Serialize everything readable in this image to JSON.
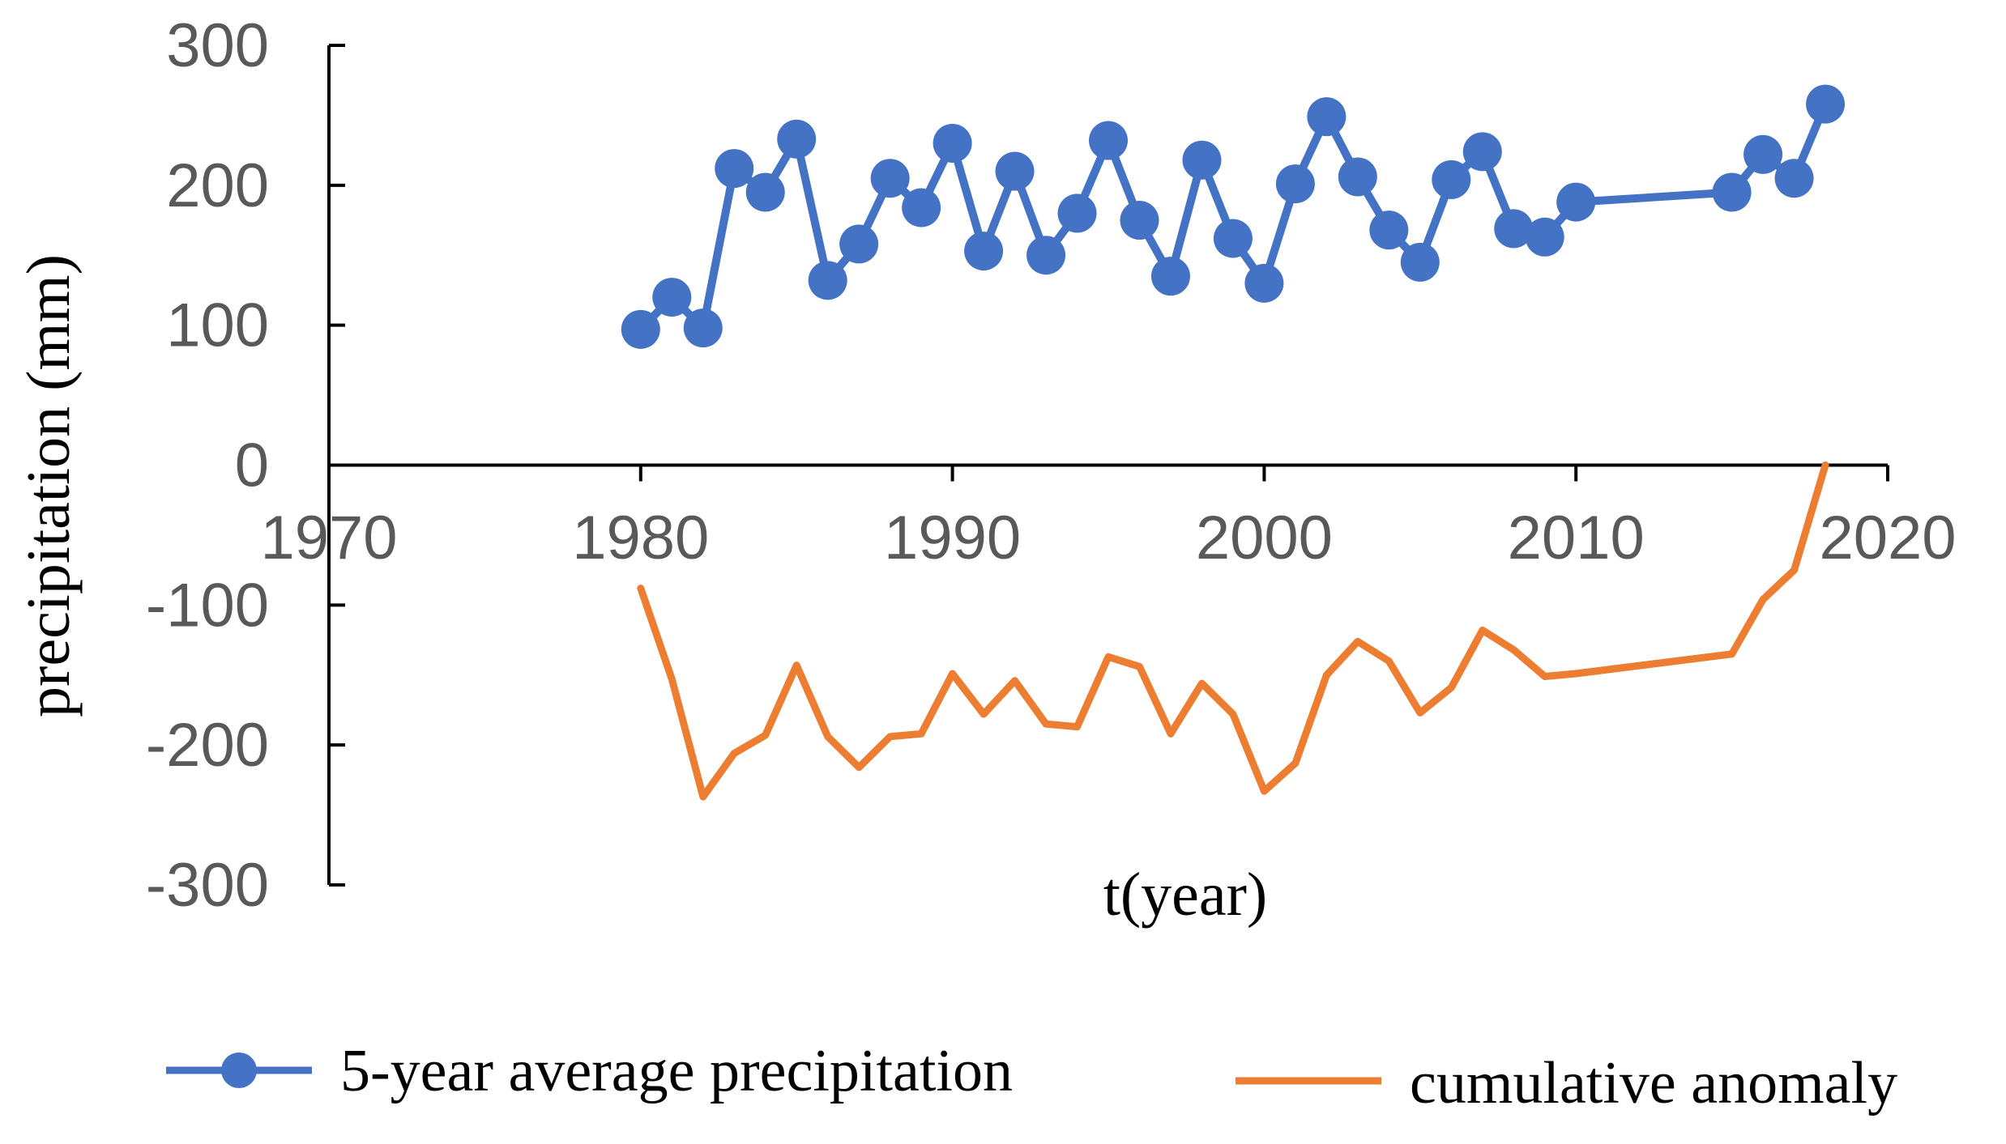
{
  "chart_data": {
    "type": "line",
    "title": "",
    "xlabel": "t(year)",
    "ylabel": "precipitation (mm)",
    "xlim": [
      1970,
      2020
    ],
    "ylim": [
      -300,
      300
    ],
    "xticks": [
      1970,
      1980,
      1990,
      2000,
      2010,
      2020
    ],
    "yticks": [
      300,
      200,
      100,
      0,
      -100,
      -200,
      -300
    ],
    "grid": false,
    "legend": "bottom",
    "colors": {
      "avg": "#4472C4",
      "anomaly": "#ED7D31",
      "axis": "#000000",
      "tick_text": "#595959"
    },
    "series": [
      {
        "name": "5-year average precipitation",
        "marker": "circle",
        "x": [
          1980,
          1981,
          1982,
          1983,
          1984,
          1985,
          1986,
          1987,
          1988,
          1989,
          1990,
          1991,
          1992,
          1993,
          1994,
          1995,
          1996,
          1997,
          1998,
          1999,
          2000,
          2001,
          2002,
          2003,
          2004,
          2005,
          2006,
          2007,
          2008,
          2009,
          2010,
          2015,
          2016,
          2017,
          2018
        ],
        "values": [
          97,
          120,
          98,
          212,
          195,
          233,
          132,
          158,
          205,
          184,
          230,
          153,
          210,
          150,
          180,
          232,
          175,
          135,
          218,
          162,
          130,
          201,
          249,
          206,
          168,
          145,
          204,
          224,
          169,
          163,
          188,
          195,
          222,
          205,
          258
        ]
      },
      {
        "name": "cumulative anomaly",
        "marker": "none",
        "x": [
          1980,
          1981,
          1982,
          1983,
          1984,
          1985,
          1986,
          1987,
          1988,
          1989,
          1990,
          1991,
          1992,
          1993,
          1994,
          1995,
          1996,
          1997,
          1998,
          1999,
          2000,
          2001,
          2002,
          2003,
          2004,
          2005,
          2006,
          2007,
          2008,
          2009,
          2010,
          2015,
          2016,
          2017,
          2018
        ],
        "values": [
          -88,
          -153,
          -237,
          -206,
          -193,
          -143,
          -194,
          -216,
          -194,
          -192,
          -149,
          -178,
          -154,
          -185,
          -187,
          -137,
          -144,
          -192,
          -156,
          -178,
          -233,
          -213,
          -150,
          -126,
          -140,
          -177,
          -159,
          -118,
          -132,
          -151,
          -149,
          -135,
          -96,
          -75,
          0
        ]
      }
    ]
  }
}
